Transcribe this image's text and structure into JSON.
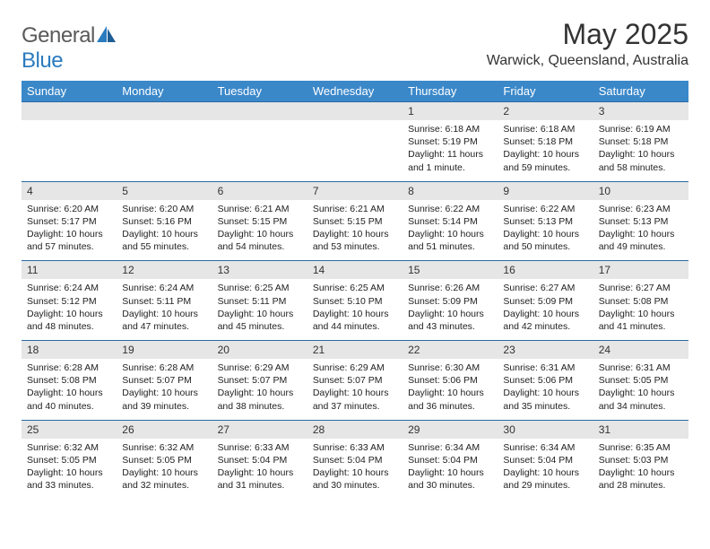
{
  "logo": {
    "general": "General",
    "blue": "Blue"
  },
  "title": "May 2025",
  "location": "Warwick, Queensland, Australia",
  "colors": {
    "header_bg": "#3b88c9",
    "header_text": "#ffffff",
    "daynum_bg": "#e6e6e6",
    "row_border": "#2b6aa5",
    "logo_gray": "#5a5a5a",
    "logo_blue": "#2b7bbf"
  },
  "days_of_week": [
    "Sunday",
    "Monday",
    "Tuesday",
    "Wednesday",
    "Thursday",
    "Friday",
    "Saturday"
  ],
  "weeks": [
    [
      {
        "n": "",
        "sr": "",
        "ss": "",
        "dl": ""
      },
      {
        "n": "",
        "sr": "",
        "ss": "",
        "dl": ""
      },
      {
        "n": "",
        "sr": "",
        "ss": "",
        "dl": ""
      },
      {
        "n": "",
        "sr": "",
        "ss": "",
        "dl": ""
      },
      {
        "n": "1",
        "sr": "Sunrise: 6:18 AM",
        "ss": "Sunset: 5:19 PM",
        "dl": "Daylight: 11 hours and 1 minute."
      },
      {
        "n": "2",
        "sr": "Sunrise: 6:18 AM",
        "ss": "Sunset: 5:18 PM",
        "dl": "Daylight: 10 hours and 59 minutes."
      },
      {
        "n": "3",
        "sr": "Sunrise: 6:19 AM",
        "ss": "Sunset: 5:18 PM",
        "dl": "Daylight: 10 hours and 58 minutes."
      }
    ],
    [
      {
        "n": "4",
        "sr": "Sunrise: 6:20 AM",
        "ss": "Sunset: 5:17 PM",
        "dl": "Daylight: 10 hours and 57 minutes."
      },
      {
        "n": "5",
        "sr": "Sunrise: 6:20 AM",
        "ss": "Sunset: 5:16 PM",
        "dl": "Daylight: 10 hours and 55 minutes."
      },
      {
        "n": "6",
        "sr": "Sunrise: 6:21 AM",
        "ss": "Sunset: 5:15 PM",
        "dl": "Daylight: 10 hours and 54 minutes."
      },
      {
        "n": "7",
        "sr": "Sunrise: 6:21 AM",
        "ss": "Sunset: 5:15 PM",
        "dl": "Daylight: 10 hours and 53 minutes."
      },
      {
        "n": "8",
        "sr": "Sunrise: 6:22 AM",
        "ss": "Sunset: 5:14 PM",
        "dl": "Daylight: 10 hours and 51 minutes."
      },
      {
        "n": "9",
        "sr": "Sunrise: 6:22 AM",
        "ss": "Sunset: 5:13 PM",
        "dl": "Daylight: 10 hours and 50 minutes."
      },
      {
        "n": "10",
        "sr": "Sunrise: 6:23 AM",
        "ss": "Sunset: 5:13 PM",
        "dl": "Daylight: 10 hours and 49 minutes."
      }
    ],
    [
      {
        "n": "11",
        "sr": "Sunrise: 6:24 AM",
        "ss": "Sunset: 5:12 PM",
        "dl": "Daylight: 10 hours and 48 minutes."
      },
      {
        "n": "12",
        "sr": "Sunrise: 6:24 AM",
        "ss": "Sunset: 5:11 PM",
        "dl": "Daylight: 10 hours and 47 minutes."
      },
      {
        "n": "13",
        "sr": "Sunrise: 6:25 AM",
        "ss": "Sunset: 5:11 PM",
        "dl": "Daylight: 10 hours and 45 minutes."
      },
      {
        "n": "14",
        "sr": "Sunrise: 6:25 AM",
        "ss": "Sunset: 5:10 PM",
        "dl": "Daylight: 10 hours and 44 minutes."
      },
      {
        "n": "15",
        "sr": "Sunrise: 6:26 AM",
        "ss": "Sunset: 5:09 PM",
        "dl": "Daylight: 10 hours and 43 minutes."
      },
      {
        "n": "16",
        "sr": "Sunrise: 6:27 AM",
        "ss": "Sunset: 5:09 PM",
        "dl": "Daylight: 10 hours and 42 minutes."
      },
      {
        "n": "17",
        "sr": "Sunrise: 6:27 AM",
        "ss": "Sunset: 5:08 PM",
        "dl": "Daylight: 10 hours and 41 minutes."
      }
    ],
    [
      {
        "n": "18",
        "sr": "Sunrise: 6:28 AM",
        "ss": "Sunset: 5:08 PM",
        "dl": "Daylight: 10 hours and 40 minutes."
      },
      {
        "n": "19",
        "sr": "Sunrise: 6:28 AM",
        "ss": "Sunset: 5:07 PM",
        "dl": "Daylight: 10 hours and 39 minutes."
      },
      {
        "n": "20",
        "sr": "Sunrise: 6:29 AM",
        "ss": "Sunset: 5:07 PM",
        "dl": "Daylight: 10 hours and 38 minutes."
      },
      {
        "n": "21",
        "sr": "Sunrise: 6:29 AM",
        "ss": "Sunset: 5:07 PM",
        "dl": "Daylight: 10 hours and 37 minutes."
      },
      {
        "n": "22",
        "sr": "Sunrise: 6:30 AM",
        "ss": "Sunset: 5:06 PM",
        "dl": "Daylight: 10 hours and 36 minutes."
      },
      {
        "n": "23",
        "sr": "Sunrise: 6:31 AM",
        "ss": "Sunset: 5:06 PM",
        "dl": "Daylight: 10 hours and 35 minutes."
      },
      {
        "n": "24",
        "sr": "Sunrise: 6:31 AM",
        "ss": "Sunset: 5:05 PM",
        "dl": "Daylight: 10 hours and 34 minutes."
      }
    ],
    [
      {
        "n": "25",
        "sr": "Sunrise: 6:32 AM",
        "ss": "Sunset: 5:05 PM",
        "dl": "Daylight: 10 hours and 33 minutes."
      },
      {
        "n": "26",
        "sr": "Sunrise: 6:32 AM",
        "ss": "Sunset: 5:05 PM",
        "dl": "Daylight: 10 hours and 32 minutes."
      },
      {
        "n": "27",
        "sr": "Sunrise: 6:33 AM",
        "ss": "Sunset: 5:04 PM",
        "dl": "Daylight: 10 hours and 31 minutes."
      },
      {
        "n": "28",
        "sr": "Sunrise: 6:33 AM",
        "ss": "Sunset: 5:04 PM",
        "dl": "Daylight: 10 hours and 30 minutes."
      },
      {
        "n": "29",
        "sr": "Sunrise: 6:34 AM",
        "ss": "Sunset: 5:04 PM",
        "dl": "Daylight: 10 hours and 30 minutes."
      },
      {
        "n": "30",
        "sr": "Sunrise: 6:34 AM",
        "ss": "Sunset: 5:04 PM",
        "dl": "Daylight: 10 hours and 29 minutes."
      },
      {
        "n": "31",
        "sr": "Sunrise: 6:35 AM",
        "ss": "Sunset: 5:03 PM",
        "dl": "Daylight: 10 hours and 28 minutes."
      }
    ]
  ]
}
